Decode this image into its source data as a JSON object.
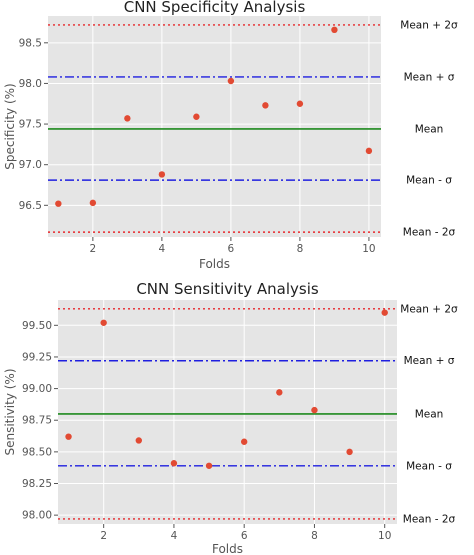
{
  "chart_data": [
    {
      "type": "scatter",
      "title": "CNN Specificity Analysis",
      "xlabel": "Folds",
      "ylabel": "Specificity (%)",
      "x": [
        1,
        2,
        3,
        4,
        5,
        6,
        7,
        8,
        9,
        10
      ],
      "y": [
        96.52,
        96.53,
        97.57,
        96.88,
        97.59,
        98.03,
        97.73,
        97.75,
        98.66,
        97.17
      ],
      "xlim": [
        0.7,
        10.35
      ],
      "ylim": [
        96.11,
        98.83
      ],
      "xticks": [
        "2",
        "4",
        "6",
        "8",
        "10"
      ],
      "yticks": [
        "96.5",
        "97.0",
        "97.5",
        "98.0",
        "98.5"
      ],
      "ref_lines": [
        {
          "label": "Mean + 2σ",
          "value": 98.72,
          "style": "dotted",
          "color": "#e8272a"
        },
        {
          "label": "Mean + σ",
          "value": 98.08,
          "style": "dashdot",
          "color": "#1f1fe0"
        },
        {
          "label": "Mean",
          "value": 97.44,
          "style": "solid",
          "color": "#1e8a1e"
        },
        {
          "label": "Mean - σ",
          "value": 96.81,
          "style": "dashdot",
          "color": "#1f1fe0"
        },
        {
          "label": "Mean - 2σ",
          "value": 96.17,
          "style": "dotted",
          "color": "#e8272a"
        }
      ],
      "grid": true,
      "marker_color": "#e24a33",
      "background": "#e5e5e5"
    },
    {
      "type": "scatter",
      "title": "CNN Sensitivity Analysis",
      "xlabel": "Folds",
      "ylabel": "Sensitivity (%)",
      "x": [
        1,
        2,
        3,
        4,
        5,
        6,
        7,
        8,
        9,
        10
      ],
      "y": [
        98.62,
        99.52,
        98.59,
        98.41,
        98.39,
        98.58,
        98.97,
        98.83,
        98.5,
        99.6
      ],
      "xlim": [
        0.7,
        10.35
      ],
      "ylim": [
        97.93,
        99.7
      ],
      "xticks": [
        "2",
        "4",
        "6",
        "8",
        "10"
      ],
      "yticks": [
        "98.00",
        "98.25",
        "98.50",
        "98.75",
        "99.00",
        "99.25",
        "99.50"
      ],
      "ref_lines": [
        {
          "label": "Mean + 2σ",
          "value": 99.63,
          "style": "dotted",
          "color": "#e8272a"
        },
        {
          "label": "Mean + σ",
          "value": 99.22,
          "style": "dashdot",
          "color": "#1f1fe0"
        },
        {
          "label": "Mean",
          "value": 98.8,
          "style": "solid",
          "color": "#1e8a1e"
        },
        {
          "label": "Mean - σ",
          "value": 98.39,
          "style": "dashdot",
          "color": "#1f1fe0"
        },
        {
          "label": "Mean - 2σ",
          "value": 97.97,
          "style": "dotted",
          "color": "#e8272a"
        }
      ],
      "grid": true,
      "marker_color": "#e24a33",
      "background": "#e5e5e5"
    }
  ]
}
